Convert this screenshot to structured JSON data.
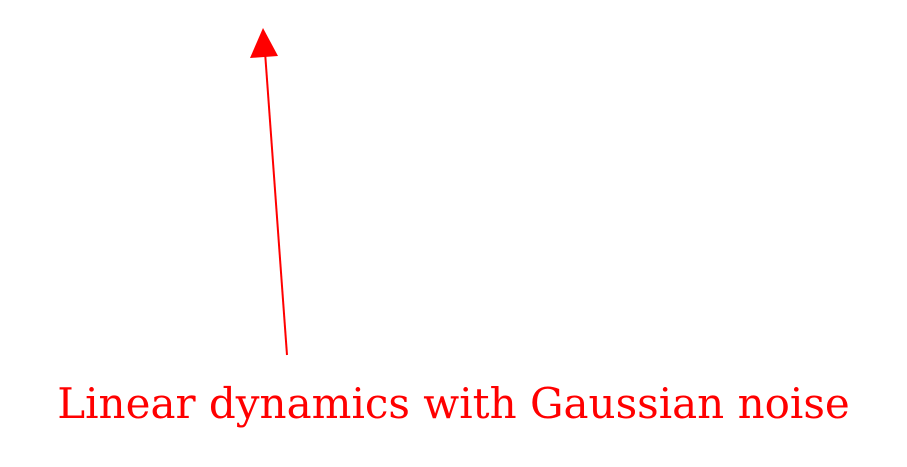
{
  "annotation": {
    "label": "Linear dynamics with Gaussian noise",
    "color": "#ff0000"
  },
  "arrow": {
    "direction": "up",
    "color": "#ff0000"
  }
}
